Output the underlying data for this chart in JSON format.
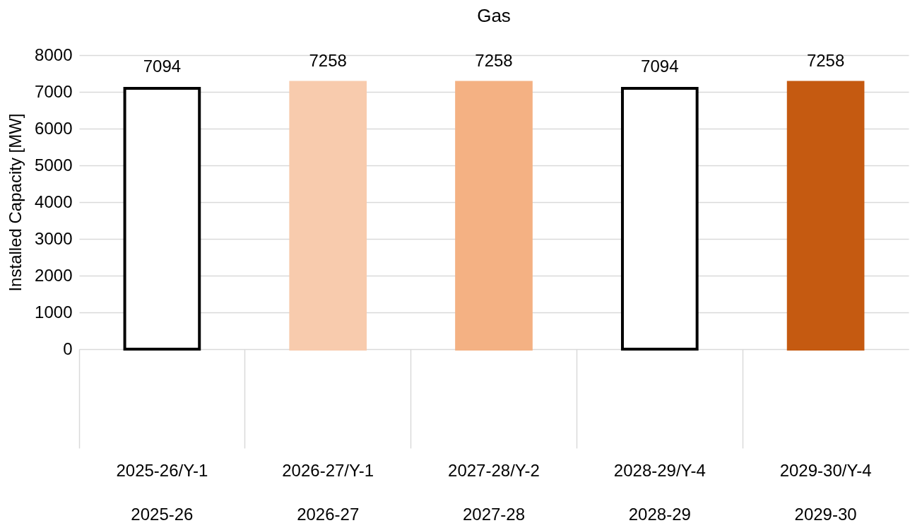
{
  "chart_data": {
    "type": "bar",
    "title": "Gas",
    "ylabel": "Installed Capacity [MW]",
    "categories": [
      "2025-26/Y-1\n2025-26",
      "2026-27/Y-1\n2026-27",
      "2027-28/Y-2\n2027-28",
      "2028-29/Y-4\n2028-29",
      "2029-30/Y-4\n2029-30"
    ],
    "values": [
      7094,
      7258,
      7258,
      7094,
      7258
    ],
    "colors": [
      "#ffffff",
      "#f8cbad",
      "#f4b183",
      "#ffffff",
      "#c55a11"
    ],
    "ylim": [
      0,
      8000
    ],
    "yticks": [
      0,
      1000,
      2000,
      3000,
      4000,
      5000,
      6000,
      7000,
      8000
    ],
    "grid": "y",
    "data_labels": true
  }
}
